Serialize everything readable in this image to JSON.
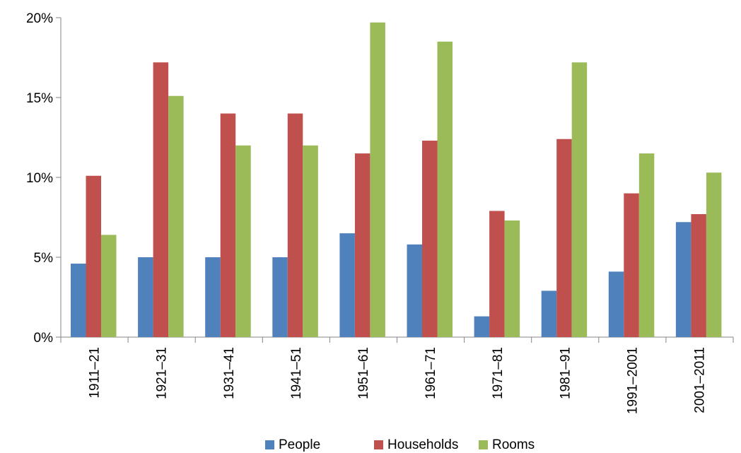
{
  "chart_data": {
    "type": "bar",
    "title": "",
    "xlabel": "",
    "ylabel": "",
    "categories": [
      "1911–21",
      "1921–31",
      "1931–41",
      "1941–51",
      "1951–61",
      "1961–71",
      "1971–81",
      "1981–91",
      "1991–2001",
      "2001–2011"
    ],
    "series": [
      {
        "name": "People",
        "color": "#4F81BD",
        "values": [
          4.6,
          5.0,
          5.0,
          5.0,
          6.5,
          5.8,
          1.3,
          2.9,
          4.1,
          7.2
        ]
      },
      {
        "name": "Households",
        "color": "#C0504D",
        "values": [
          10.1,
          17.2,
          14.0,
          14.0,
          11.5,
          12.3,
          7.9,
          12.4,
          9.0,
          7.7
        ]
      },
      {
        "name": "Rooms",
        "color": "#9BBB59",
        "values": [
          6.4,
          15.1,
          12.0,
          12.0,
          19.7,
          18.5,
          7.3,
          17.2,
          11.5,
          10.3
        ]
      }
    ],
    "yticks": [
      0,
      5,
      10,
      15,
      20
    ],
    "ytick_labels": [
      "0%",
      "5%",
      "10%",
      "15%",
      "20%"
    ],
    "ylim": [
      0,
      20
    ],
    "grid": false,
    "legend_position": "bottom"
  }
}
